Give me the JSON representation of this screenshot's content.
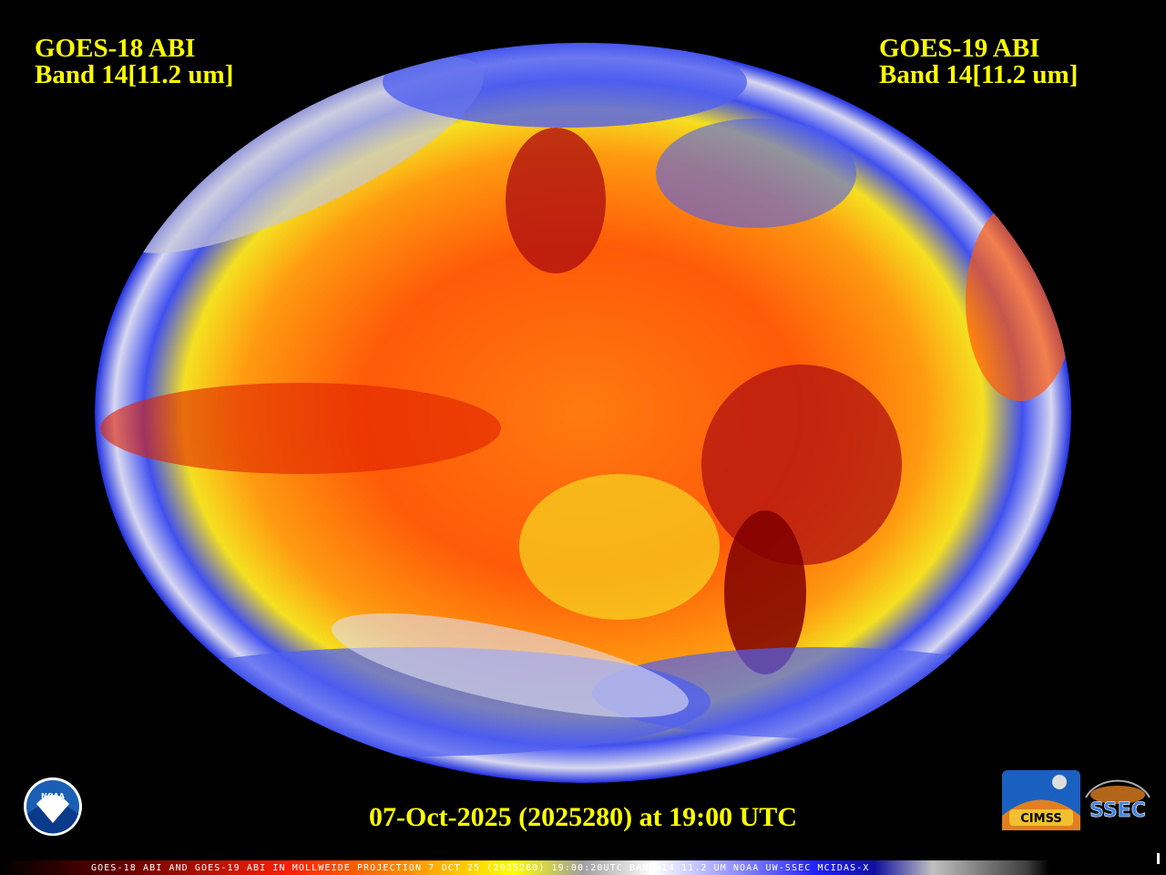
{
  "left_label": {
    "satellite": "GOES-18 ABI",
    "band": "Band 14[11.2 um]"
  },
  "right_label": {
    "satellite": "GOES-19 ABI",
    "band": "Band 14[11.2 um]"
  },
  "timestamp": "07-Oct-2025 (2025280) at 19:00 UTC",
  "footer": "GOES-18 ABI AND GOES-19 ABI IN MOLLWEIDE PROJECTION 7 OCT 25 (2025280) 19:00:20UTC BAND=14 11.2 UM NOAA UW-SSEC MCIDAS-X",
  "logos": {
    "noaa": "NOAA",
    "cimss": "CIMSS",
    "ssec": "SSEC"
  }
}
